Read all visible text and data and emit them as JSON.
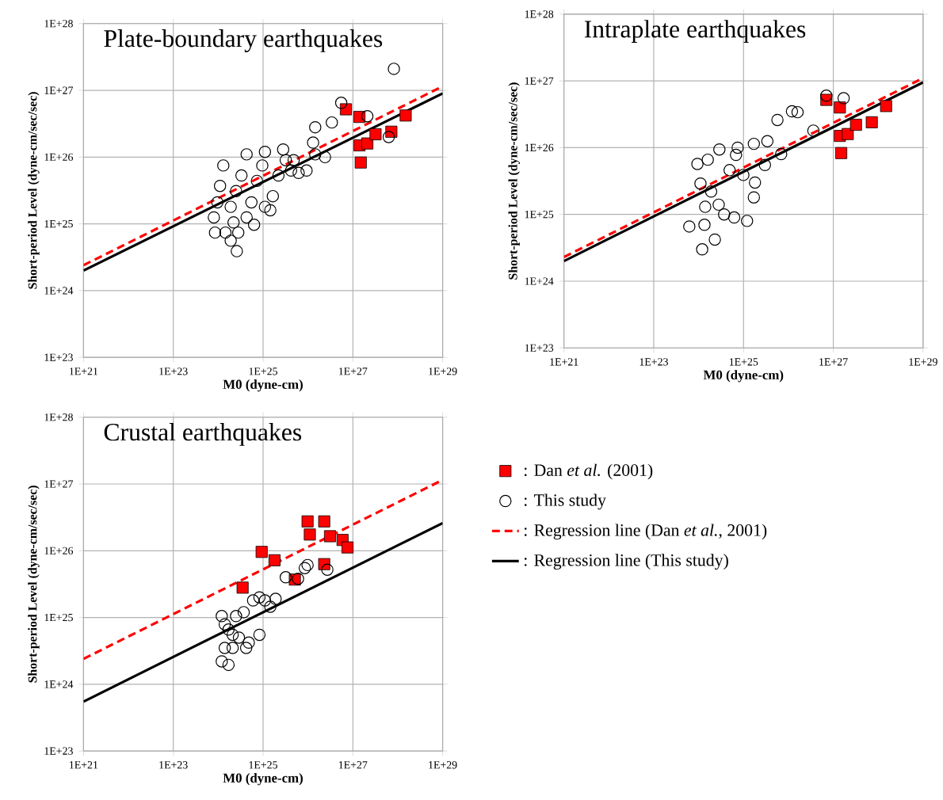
{
  "chart_data": [
    {
      "type": "scatter",
      "title": "Plate-boundary earthquakes",
      "xlabel": "M0 (dyne-cm)",
      "ylabel": "Short-period Level (dyne-cm/sec/sec)",
      "log": "xy",
      "grid": true,
      "xlim": [
        1e+21,
        1e+29
      ],
      "ylim": [
        1e+23,
        1e+28
      ],
      "xticks": [
        {
          "value": 1e+21,
          "label": "1E+21"
        },
        {
          "value": 1e+23,
          "label": "1E+23"
        },
        {
          "value": 1e+25,
          "label": "1E+25"
        },
        {
          "value": 1e+27,
          "label": "1E+27"
        },
        {
          "value": 1e+29,
          "label": "1E+29"
        }
      ],
      "yticks": [
        {
          "value": 1e+23,
          "label": "1E+23"
        },
        {
          "value": 1e+24,
          "label": "1E+24"
        },
        {
          "value": 1e+25,
          "label": "1E+25"
        },
        {
          "value": 1e+26,
          "label": "1E+26"
        },
        {
          "value": 1e+27,
          "label": "1E+27"
        },
        {
          "value": 1e+28,
          "label": "1E+28"
        }
      ],
      "series": [
        {
          "marker": "square",
          "color": "#ff0000",
          "x": [
            7e+26,
            1.4e+27,
            1.4e+27,
            2.1e+27,
            1.5e+27,
            3.2e+27,
            7.2e+27,
            1.5e+28
          ],
          "values": [
            5.2e+26,
            4e+26,
            1.5e+26,
            1.6e+26,
            8.3e+25,
            2.2e+26,
            2.4e+26,
            4.2e+26
          ]
        },
        {
          "marker": "circle",
          "color": "#000000",
          "x": [
            8e+23,
            9.6e+23,
            1.1e+24,
            1.3e+24,
            1.45e+24,
            1.9e+24,
            2.6e+24,
            2.8e+24,
            1.9e+24,
            2.5e+24,
            3.3e+24,
            4.3e+24,
            5.5e+24,
            7.3e+24,
            9.6e+24,
            1.1e+25,
            1.45e+25,
            1.65e+25,
            2.2e+25,
            3.2e+25,
            4.2e+25,
            6.2e+25,
            9.3e+25,
            1.45e+26,
            1.45e+26,
            1.3e+26,
            2.4e+26,
            3.4e+26,
            5.5e+26,
            2.1e+27,
            6.3e+27,
            8.2e+27,
            4.3e+24,
            8.5e+23,
            2.2e+24,
            6.3e+24,
            1.1e+25,
            2.8e+25,
            4.8e+25
          ],
          "values": [
            1.25e+25,
            2.1e+25,
            3.7e+25,
            7.5e+25,
            7.4e+24,
            5.6e+24,
            3.9e+24,
            7.4e+24,
            1.8e+25,
            3.1e+25,
            5.3e+25,
            1.25e+25,
            2.1e+25,
            4.4e+25,
            7.5e+25,
            1.2e+26,
            1.6e+25,
            2.6e+25,
            5.3e+25,
            9e+25,
            6.3e+25,
            5.8e+25,
            6.3e+25,
            2.8e+26,
            1.1e+26,
            1.65e+26,
            1e+26,
            3.3e+26,
            6.5e+26,
            4.1e+26,
            2e+26,
            2.1e+27,
            1.1e+26,
            7.4e+24,
            1.05e+25,
            9.7e+24,
            1.8e+25,
            1.3e+26,
            9e+25
          ]
        },
        {
          "type": "line",
          "line_style": "dashed",
          "color": "#ff0000",
          "x": [
            1e+21,
            1e+29
          ],
          "values": [
            2.4e+24,
            1.15e+27
          ]
        },
        {
          "type": "line",
          "line_style": "solid",
          "color": "#000000",
          "x": [
            1e+21,
            1e+29
          ],
          "values": [
            2e+24,
            9e+26
          ]
        }
      ]
    },
    {
      "type": "scatter",
      "title": "Intraplate earthquakes",
      "xlabel": "M0 (dyne-cm)",
      "ylabel": "Short-period Level (dyne-cm/sec/sec)",
      "log": "xy",
      "grid": true,
      "xlim": [
        1e+21,
        1e+29
      ],
      "ylim": [
        1e+23,
        1e+28
      ],
      "xticks": [
        {
          "value": 1e+21,
          "label": "1E+21"
        },
        {
          "value": 1e+23,
          "label": "1E+23"
        },
        {
          "value": 1e+25,
          "label": "1E+25"
        },
        {
          "value": 1e+27,
          "label": "1E+27"
        },
        {
          "value": 1e+29,
          "label": "1E+29"
        }
      ],
      "yticks": [
        {
          "value": 1e+23,
          "label": "1E+23"
        },
        {
          "value": 1e+24,
          "label": "1E+24"
        },
        {
          "value": 1e+25,
          "label": "1E+25"
        },
        {
          "value": 1e+26,
          "label": "1E+26"
        },
        {
          "value": 1e+27,
          "label": "1E+27"
        },
        {
          "value": 1e+28,
          "label": "1E+28"
        }
      ],
      "series": [
        {
          "marker": "square",
          "color": "#ff0000",
          "x": [
            7e+26,
            1.4e+27,
            1.4e+27,
            2.1e+27,
            1.5e+27,
            3.2e+27,
            7.2e+27,
            1.5e+28
          ],
          "values": [
            5.2e+26,
            4e+26,
            1.5e+26,
            1.6e+26,
            8.3e+25,
            2.2e+26,
            2.4e+26,
            4.2e+26
          ]
        },
        {
          "marker": "circle",
          "color": "#000000",
          "x": [
            6.2e+23,
            1.2e+24,
            1.35e+24,
            2.3e+24,
            9.4e+23,
            1.6e+24,
            1.1e+24,
            1.9e+24,
            1.4e+24,
            2.8e+24,
            3.7e+24,
            2.9e+24,
            4.9e+24,
            6.8e+24,
            7.4e+24,
            9.9e+24,
            6.2e+24,
            1.2e+25,
            1.7e+25,
            1.7e+25,
            1.8e+25,
            3e+25,
            3.4e+25,
            5.7e+25,
            6.9e+25,
            1.2e+26,
            1.6e+26,
            3.6e+26,
            7e+26,
            1.7e+27
          ],
          "values": [
            6.6e+24,
            3e+24,
            7e+24,
            4.2e+24,
            5.7e+25,
            6.6e+25,
            2.9e+25,
            2.2e+25,
            1.3e+25,
            1.4e+25,
            1e+25,
            9.4e+25,
            4.6e+25,
            7.8e+25,
            1e+26,
            3.9e+25,
            9e+24,
            8e+24,
            1.14e+26,
            1.8e+25,
            3e+25,
            5.5e+25,
            1.25e+26,
            2.6e+26,
            8e+25,
            3.5e+26,
            3.4e+26,
            1.8e+26,
            6e+26,
            5.5e+26
          ]
        },
        {
          "type": "line",
          "line_style": "dashed",
          "color": "#ff0000",
          "x": [
            1e+21,
            1e+29
          ],
          "values": [
            2.3e+24,
            1.1e+27
          ]
        },
        {
          "type": "line",
          "line_style": "solid",
          "color": "#000000",
          "x": [
            1e+21,
            1e+29
          ],
          "values": [
            2e+24,
            9.5e+26
          ]
        }
      ]
    },
    {
      "type": "scatter",
      "title": "Crustal earthquakes",
      "xlabel": "M0 (dyne-cm)",
      "ylabel": "Short-period Level (dyne-cm/sec/sec)",
      "log": "xy",
      "grid": true,
      "legend": "right",
      "xlim": [
        1e+21,
        1e+29
      ],
      "ylim": [
        1e+23,
        1e+28
      ],
      "xticks": [
        {
          "value": 1e+21,
          "label": "1E+21"
        },
        {
          "value": 1e+23,
          "label": "1E+23"
        },
        {
          "value": 1e+25,
          "label": "1E+25"
        },
        {
          "value": 1e+27,
          "label": "1E+27"
        },
        {
          "value": 1e+29,
          "label": "1E+29"
        }
      ],
      "yticks": [
        {
          "value": 1e+23,
          "label": "1E+23"
        },
        {
          "value": 1e+24,
          "label": "1E+24"
        },
        {
          "value": 1e+25,
          "label": "1E+25"
        },
        {
          "value": 1e+26,
          "label": "1E+26"
        },
        {
          "value": 1e+27,
          "label": "1E+27"
        },
        {
          "value": 1e+28,
          "label": "1E+28"
        }
      ],
      "series": [
        {
          "name": ": Dan *et al.* (2001)",
          "marker": "square",
          "color": "#ff0000",
          "x": [
            3.5e+24,
            9.3e+24,
            1.8e+25,
            5.1e+25,
            9.8e+25,
            1.1e+26,
            2.3e+26,
            2.3e+26,
            3.1e+26,
            5.9e+26,
            7.6e+26
          ],
          "values": [
            2.8e+25,
            9.6e+25,
            7.2e+25,
            3.7e+25,
            2.75e+26,
            1.75e+26,
            2.75e+26,
            6.3e+25,
            1.65e+26,
            1.45e+26,
            1.12e+26
          ]
        },
        {
          "name": ": This study",
          "marker": "circle",
          "color": "#000000",
          "x": [
            1.2e+24,
            1.4e+24,
            1.7e+24,
            2.1e+24,
            1.2e+24,
            1.7e+24,
            1.4e+24,
            2.1e+24,
            2.9e+24,
            4.2e+24,
            4.8e+24,
            8.3e+24,
            3.7e+24,
            6e+24,
            8.3e+24,
            1.1e+25,
            1.45e+25,
            1.9e+25,
            3.2e+25,
            6e+25,
            8.5e+25,
            9.8e+25,
            2.7e+26,
            2.5e+24
          ],
          "values": [
            1.05e+25,
            7.9e+24,
            6.6e+24,
            5.5e+24,
            2.2e+24,
            1.95e+24,
            3.5e+24,
            3.5e+24,
            5e+24,
            3.5e+24,
            4.2e+24,
            5.5e+24,
            1.2e+25,
            1.8e+25,
            2e+25,
            1.8e+25,
            1.45e+25,
            1.9e+25,
            4e+25,
            3.8e+25,
            5.5e+25,
            6.1e+25,
            5.2e+25,
            1.05e+25
          ]
        },
        {
          "name": ": Regression line (Dan *et al.*, 2001)",
          "type": "line",
          "line_style": "dashed",
          "color": "#ff0000",
          "x": [
            1e+21,
            1e+29
          ],
          "values": [
            2.4e+24,
            1.15e+27
          ]
        },
        {
          "name": ": Regression line (This study)",
          "type": "line",
          "line_style": "solid",
          "color": "#000000",
          "x": [
            1e+21,
            1e+29
          ],
          "values": [
            5.5e+23,
            2.6e+26
          ]
        }
      ]
    }
  ]
}
